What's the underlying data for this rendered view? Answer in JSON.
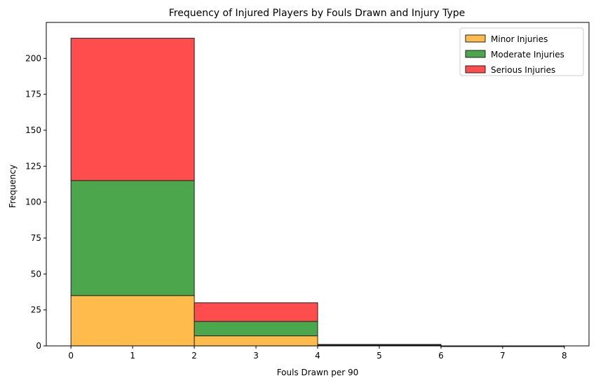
{
  "chart_data": {
    "type": "bar",
    "stacked": true,
    "title": "Frequency of Injured Players by Fouls Drawn and Injury Type",
    "xlabel": "Fouls Drawn per 90",
    "ylabel": "Frequency",
    "bins": [
      [
        0,
        2
      ],
      [
        2,
        4
      ],
      [
        4,
        6
      ],
      [
        6,
        8
      ]
    ],
    "series": [
      {
        "name": "Minor Injuries",
        "color": "#FFBC4C",
        "values": [
          35,
          7,
          0.5,
          0
        ]
      },
      {
        "name": "Moderate Injuries",
        "color": "#4CA64C",
        "values": [
          80,
          10,
          0.5,
          0
        ]
      },
      {
        "name": "Serious Injuries",
        "color": "#FF4C4C",
        "values": [
          99,
          13,
          0,
          0
        ]
      }
    ],
    "xlim": [
      -0.4,
      8.4
    ],
    "ylim": [
      0,
      225
    ],
    "xticks": [
      0,
      1,
      2,
      3,
      4,
      5,
      6,
      7,
      8
    ],
    "yticks": [
      0,
      25,
      50,
      75,
      100,
      125,
      150,
      175,
      200
    ],
    "legend_position": "top-right",
    "grid": false,
    "edge_color": "#222222"
  }
}
